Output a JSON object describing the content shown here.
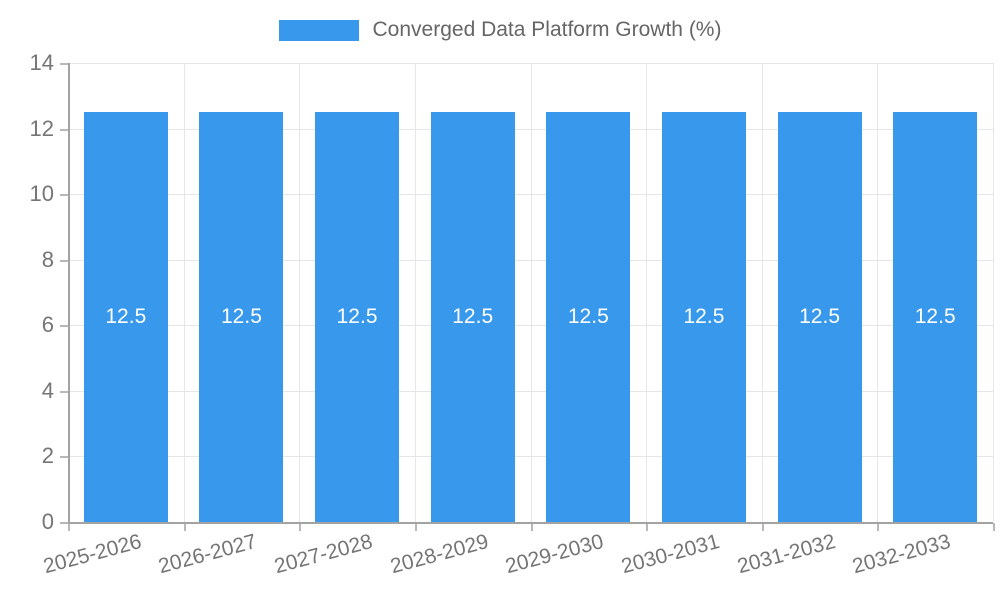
{
  "chart_data": {
    "type": "bar",
    "series_name": "Converged Data Platform Growth (%)",
    "categories": [
      "2025-2026",
      "2026-2027",
      "2027-2028",
      "2028-2029",
      "2029-2030",
      "2030-2031",
      "2031-2032",
      "2032-2033"
    ],
    "values": [
      12.5,
      12.5,
      12.5,
      12.5,
      12.5,
      12.5,
      12.5,
      12.5
    ],
    "value_labels": [
      "12.5",
      "12.5",
      "12.5",
      "12.5",
      "12.5",
      "12.5",
      "12.5",
      "12.5"
    ],
    "ylim": [
      0,
      14
    ],
    "yticks": [
      0,
      2,
      4,
      6,
      8,
      10,
      12,
      14
    ],
    "grid": true,
    "legend_position": "top-center",
    "title": "",
    "xlabel": "",
    "ylabel": ""
  },
  "colors": {
    "bar": "#3899ec",
    "grid": "#e6e6e6",
    "axis": "#a3a3a3",
    "tick_text": "#757575",
    "legend_text": "#666666",
    "value_text": "#ffffff"
  }
}
